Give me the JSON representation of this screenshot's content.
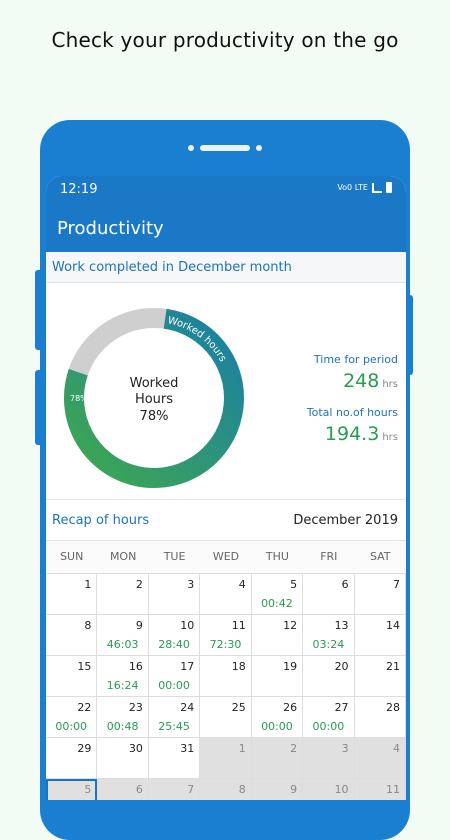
{
  "headline": "Check your productivity on the go",
  "status": {
    "time": "12:19",
    "net1": "Vo0 LTE",
    "net2": "LTE1 ⇅"
  },
  "appbar": {
    "title": "Productivity"
  },
  "card": {
    "header": "Work completed in December month"
  },
  "donut": {
    "center_line1": "Worked",
    "center_line2": "Hours",
    "center_pct": "78%",
    "arc_label": "Worked hours",
    "small_label": "78%",
    "worked_fraction": 0.78,
    "colors": {
      "remain": "#cfcfcf",
      "green": "#3fa84e",
      "teal": "#1a7fa6"
    }
  },
  "stats": {
    "period_label": "Time for period",
    "period_value": "248",
    "period_unit": "hrs",
    "total_label": "Total no.of hours",
    "total_value": "194.3",
    "total_unit": "hrs"
  },
  "recap": {
    "title": "Recap of hours",
    "month": "December 2019"
  },
  "weekdays": [
    "SUN",
    "MON",
    "TUE",
    "WED",
    "THU",
    "FRI",
    "SAT"
  ],
  "calendar": [
    {
      "d": "1",
      "h": ""
    },
    {
      "d": "2",
      "h": ""
    },
    {
      "d": "3",
      "h": ""
    },
    {
      "d": "4",
      "h": ""
    },
    {
      "d": "5",
      "h": "00:42"
    },
    {
      "d": "6",
      "h": ""
    },
    {
      "d": "7",
      "h": ""
    },
    {
      "d": "8",
      "h": ""
    },
    {
      "d": "9",
      "h": "46:03"
    },
    {
      "d": "10",
      "h": "28:40"
    },
    {
      "d": "11",
      "h": "72:30"
    },
    {
      "d": "12",
      "h": ""
    },
    {
      "d": "13",
      "h": "03:24"
    },
    {
      "d": "14",
      "h": ""
    },
    {
      "d": "15",
      "h": ""
    },
    {
      "d": "16",
      "h": "16:24"
    },
    {
      "d": "17",
      "h": "00:00"
    },
    {
      "d": "18",
      "h": ""
    },
    {
      "d": "19",
      "h": ""
    },
    {
      "d": "20",
      "h": ""
    },
    {
      "d": "21",
      "h": ""
    },
    {
      "d": "22",
      "h": "00:00"
    },
    {
      "d": "23",
      "h": "00:48"
    },
    {
      "d": "24",
      "h": "25:45"
    },
    {
      "d": "25",
      "h": ""
    },
    {
      "d": "26",
      "h": "00:00"
    },
    {
      "d": "27",
      "h": "00:00"
    },
    {
      "d": "28",
      "h": ""
    },
    {
      "d": "29",
      "h": ""
    },
    {
      "d": "30",
      "h": ""
    },
    {
      "d": "31",
      "h": ""
    },
    {
      "d": "1",
      "h": "",
      "other": true
    },
    {
      "d": "2",
      "h": "",
      "other": true
    },
    {
      "d": "3",
      "h": "",
      "other": true
    },
    {
      "d": "4",
      "h": "",
      "other": true
    },
    {
      "d": "5",
      "h": "",
      "other": true,
      "sel": true
    },
    {
      "d": "6",
      "h": "",
      "other": true
    },
    {
      "d": "7",
      "h": "",
      "other": true
    },
    {
      "d": "8",
      "h": "",
      "other": true
    },
    {
      "d": "9",
      "h": "",
      "other": true
    },
    {
      "d": "10",
      "h": "",
      "other": true
    },
    {
      "d": "11",
      "h": "",
      "other": true
    }
  ]
}
